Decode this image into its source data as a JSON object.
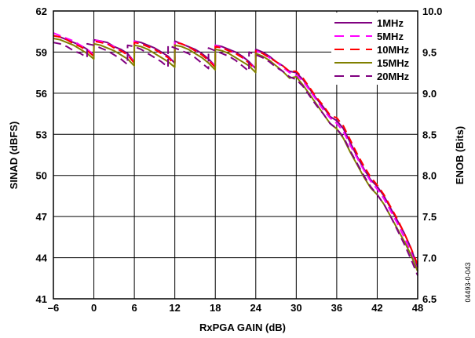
{
  "figure_id": "04493-0-043",
  "chart_data": {
    "type": "line",
    "xlabel": "RxPGA GAIN (dB)",
    "ylabel": "SINAD (dBFS)",
    "y2label": "ENOB (Bits)",
    "xlim": [
      -6,
      48
    ],
    "ylim": [
      41,
      62
    ],
    "y2lim": [
      6.5,
      10.0
    ],
    "x_ticks": [
      -6,
      0,
      6,
      12,
      18,
      24,
      30,
      36,
      42,
      48
    ],
    "x_tick_labels": [
      "–6",
      "0",
      "6",
      "12",
      "18",
      "24",
      "30",
      "36",
      "42",
      "48"
    ],
    "y_ticks": [
      41,
      44,
      47,
      50,
      53,
      56,
      59,
      62
    ],
    "y_tick_labels": [
      "41",
      "44",
      "47",
      "50",
      "53",
      "56",
      "59",
      "62"
    ],
    "y2_ticks": [
      6.5,
      7.0,
      7.5,
      8.0,
      8.5,
      9.0,
      9.5,
      10.0
    ],
    "y2_tick_labels": [
      "6.5",
      "7.0",
      "7.5",
      "8.0",
      "8.5",
      "9.0",
      "9.5",
      "10.0"
    ],
    "grid": true,
    "legend_position": "top-right",
    "series": [
      {
        "name": "1MHz",
        "color": "#800080",
        "dash": "solid",
        "x": [
          -6,
          -5,
          -4,
          -3,
          -2,
          -1,
          -0.01,
          0,
          1,
          2,
          3,
          4,
          5,
          5.99,
          6,
          7,
          8,
          9,
          10,
          11,
          11.99,
          12,
          13,
          14,
          15,
          16,
          17,
          17.99,
          18,
          19,
          20,
          21,
          22,
          23,
          23.99,
          24,
          25,
          26,
          27,
          28,
          29,
          30,
          31,
          32,
          33,
          34,
          35,
          36,
          37,
          38,
          39,
          40,
          41,
          42,
          43,
          44,
          45,
          46,
          47,
          48
        ],
        "y": [
          60.2,
          60.1,
          59.9,
          59.7,
          59.5,
          59.2,
          58.8,
          59.9,
          59.8,
          59.7,
          59.4,
          59.2,
          58.9,
          58.3,
          59.8,
          59.7,
          59.5,
          59.3,
          59.0,
          58.7,
          58.2,
          59.8,
          59.6,
          59.4,
          59.2,
          58.9,
          58.5,
          58.0,
          59.5,
          59.4,
          59.2,
          59.0,
          58.7,
          58.3,
          57.8,
          59.2,
          59.0,
          58.7,
          58.3,
          58.0,
          57.6,
          57.5,
          57.0,
          56.3,
          55.6,
          55.0,
          54.3,
          54.0,
          53.4,
          52.4,
          51.4,
          50.5,
          49.7,
          49.2,
          48.5,
          47.6,
          46.7,
          45.8,
          44.7,
          43.3
        ]
      },
      {
        "name": "5MHz",
        "color": "#ff00ff",
        "dash": "dashed",
        "x": [
          -6,
          -5,
          -4,
          -3,
          -2,
          -1,
          -0.01,
          0,
          1,
          2,
          3,
          4,
          5,
          5.99,
          6,
          7,
          8,
          9,
          10,
          11,
          11.99,
          12,
          13,
          14,
          15,
          16,
          17,
          17.99,
          18,
          19,
          20,
          21,
          22,
          23,
          23.99,
          24,
          25,
          26,
          27,
          28,
          29,
          30,
          31,
          32,
          33,
          34,
          35,
          36,
          37,
          38,
          39,
          40,
          41,
          42,
          43,
          44,
          45,
          46,
          47,
          48
        ],
        "y": [
          60.4,
          60.2,
          60.0,
          59.8,
          59.5,
          59.2,
          58.8,
          59.9,
          59.8,
          59.6,
          59.4,
          59.1,
          58.8,
          58.3,
          59.8,
          59.6,
          59.4,
          59.2,
          58.9,
          58.6,
          58.2,
          59.8,
          59.6,
          59.4,
          59.1,
          58.8,
          58.4,
          58.0,
          59.5,
          59.3,
          59.1,
          58.9,
          58.6,
          58.2,
          57.8,
          59.1,
          58.9,
          58.6,
          58.3,
          57.9,
          57.5,
          57.3,
          56.9,
          56.2,
          55.5,
          54.8,
          54.2,
          53.8,
          53.2,
          52.2,
          51.3,
          50.4,
          49.6,
          49.0,
          48.3,
          47.4,
          46.5,
          45.5,
          44.4,
          43.0
        ]
      },
      {
        "name": "10MHz",
        "color": "#ff0000",
        "dash": "dashed",
        "x": [
          -6,
          -5,
          -4,
          -3,
          -2,
          -1,
          -0.01,
          0,
          1,
          2,
          3,
          4,
          5,
          5.99,
          6,
          7,
          8,
          9,
          10,
          11,
          11.99,
          12,
          13,
          14,
          15,
          16,
          17,
          17.99,
          18,
          19,
          20,
          21,
          22,
          23,
          23.99,
          24,
          25,
          26,
          27,
          28,
          29,
          30,
          31,
          32,
          33,
          34,
          35,
          36,
          37,
          38,
          39,
          40,
          41,
          42,
          43,
          44,
          45,
          46,
          47,
          48
        ],
        "y": [
          60.2,
          60.1,
          59.9,
          59.6,
          59.4,
          59.1,
          58.7,
          59.8,
          59.7,
          59.6,
          59.3,
          59.1,
          58.8,
          58.2,
          59.7,
          59.6,
          59.4,
          59.2,
          58.9,
          58.6,
          58.1,
          59.7,
          59.6,
          59.4,
          59.1,
          58.8,
          58.4,
          57.9,
          59.4,
          59.3,
          59.1,
          58.9,
          58.6,
          58.2,
          57.7,
          59.1,
          58.9,
          58.6,
          58.3,
          58.0,
          57.6,
          57.6,
          57.1,
          56.4,
          55.7,
          55.1,
          54.4,
          54.2,
          53.6,
          52.6,
          51.6,
          50.7,
          49.9,
          49.3,
          48.6,
          47.7,
          46.8,
          45.8,
          44.7,
          43.5
        ]
      },
      {
        "name": "15MHz",
        "color": "#808000",
        "dash": "solid",
        "x": [
          -6,
          -5,
          -4,
          -3,
          -2,
          -1,
          -0.01,
          0,
          1,
          2,
          3,
          4,
          5,
          5.99,
          6,
          7,
          8,
          9,
          10,
          11,
          11.99,
          12,
          13,
          14,
          15,
          16,
          17,
          17.99,
          18,
          19,
          20,
          21,
          22,
          23,
          23.99,
          24,
          25,
          26,
          27,
          28,
          29,
          30,
          31,
          32,
          33,
          34,
          35,
          36,
          37,
          38,
          39,
          40,
          41,
          42,
          43,
          44,
          45,
          46,
          47,
          48
        ],
        "y": [
          60.0,
          59.9,
          59.7,
          59.5,
          59.2,
          58.9,
          58.5,
          59.6,
          59.5,
          59.3,
          59.1,
          58.8,
          58.5,
          58.0,
          59.5,
          59.4,
          59.2,
          58.9,
          58.6,
          58.3,
          57.9,
          59.5,
          59.4,
          59.2,
          58.9,
          58.6,
          58.2,
          57.7,
          59.2,
          59.1,
          58.9,
          58.6,
          58.3,
          58.0,
          57.5,
          58.9,
          58.7,
          58.4,
          58.0,
          57.6,
          57.1,
          57.2,
          56.6,
          55.9,
          55.2,
          54.5,
          53.8,
          53.4,
          52.7,
          51.7,
          50.8,
          49.9,
          49.1,
          48.6,
          47.9,
          47.0,
          46.1,
          45.2,
          44.2,
          43.0
        ]
      },
      {
        "name": "20MHz",
        "color": "#800080",
        "dash": "dashed",
        "x": [
          -6,
          -5,
          -4,
          -3,
          -2,
          -1.01,
          -1,
          0,
          1,
          2,
          3,
          4,
          4.99,
          5,
          6,
          7,
          8,
          9,
          10,
          10.99,
          11,
          12,
          13,
          14,
          15,
          16,
          16.99,
          17,
          18,
          19,
          20,
          21,
          22,
          22.99,
          23,
          24,
          25,
          26,
          27,
          28,
          29,
          30,
          31,
          32,
          33,
          34,
          35,
          36,
          37,
          38,
          39,
          40,
          41,
          42,
          43,
          44,
          45,
          46,
          47,
          48
        ],
        "y": [
          59.7,
          59.6,
          59.4,
          59.1,
          58.9,
          58.6,
          59.6,
          59.5,
          59.3,
          59.1,
          58.8,
          58.5,
          58.1,
          59.5,
          59.4,
          59.2,
          58.9,
          58.6,
          58.3,
          57.9,
          59.5,
          59.3,
          59.1,
          58.9,
          58.6,
          58.2,
          57.8,
          59.3,
          59.1,
          58.9,
          58.7,
          58.4,
          58.0,
          57.6,
          59.0,
          58.8,
          58.6,
          58.3,
          57.9,
          57.6,
          57.2,
          57.0,
          56.5,
          55.8,
          55.1,
          54.5,
          53.8,
          53.4,
          52.8,
          51.8,
          50.9,
          50.0,
          49.2,
          48.6,
          47.9,
          47.0,
          46.0,
          45.0,
          43.9,
          42.7
        ]
      }
    ]
  }
}
